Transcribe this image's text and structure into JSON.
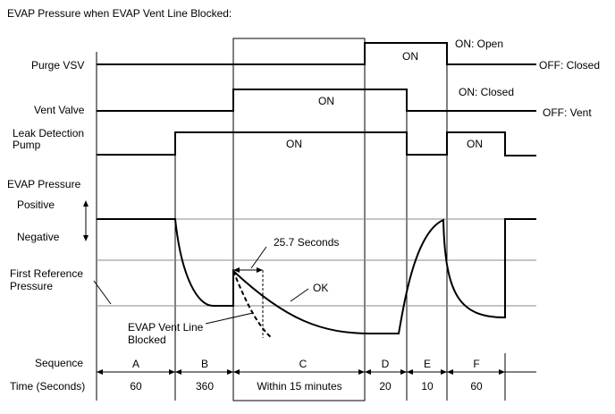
{
  "title": "EVAP Pressure when EVAP Vent Line Blocked:",
  "signals": {
    "purge_vsv": "Purge VSV",
    "vent_valve": "Vent Valve",
    "leak_pump_line1": "Leak Detection",
    "leak_pump_line2": "Pump",
    "evap_pressure": "EVAP Pressure",
    "positive": "Positive",
    "negative": "Negative",
    "first_ref_line1": "First Reference",
    "first_ref_line2": "Pressure"
  },
  "states": {
    "on": "ON",
    "on_open": "ON: Open",
    "off_closed": "OFF: Closed",
    "on_closed": "ON: Closed",
    "off_vent": "OFF: Vent"
  },
  "annotations": {
    "seconds": "25.7 Seconds",
    "ok": "OK",
    "blocked_line1": "EVAP Vent Line",
    "blocked_line2": "Blocked"
  },
  "table": {
    "sequence_label": "Sequence",
    "time_label": "Time (Seconds)",
    "sequence": [
      "A",
      "B",
      "C",
      "D",
      "E",
      "F"
    ],
    "times": [
      "60",
      "360",
      "Within 15 minutes",
      "20",
      "10",
      "60"
    ]
  }
}
